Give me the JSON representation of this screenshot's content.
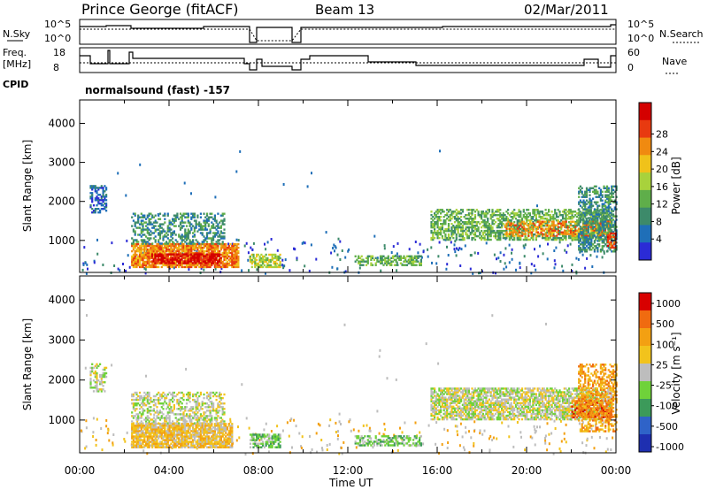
{
  "header": {
    "title": "Prince George (fitACF)",
    "beam": "Beam 13",
    "date": "02/Mar/2011"
  },
  "noise_panel": {
    "left_label": "N.Sky",
    "right_label": "N.Search",
    "ticks_left": [
      "10^5",
      "10^0"
    ],
    "ticks_right": [
      "10^5",
      "10^0"
    ]
  },
  "freq_panel": {
    "left_label_1": "Freq.",
    "left_label_2": "[MHz]",
    "ticks_left": [
      "18",
      "8"
    ],
    "ticks_right": [
      "60",
      "0"
    ],
    "right_label": "Nave",
    "cpid_label": "CPID",
    "cpid_text": "normalsound (fast) -157"
  },
  "colors": {
    "power": [
      "#2b2bd6",
      "#1f6fb8",
      "#3d8a6a",
      "#5fae4a",
      "#a8d23c",
      "#f0c21a",
      "#f08a10",
      "#e83a10",
      "#d40000"
    ],
    "velocity": [
      "#1e2fb0",
      "#2f63c8",
      "#3c9a5a",
      "#6fd23a",
      "#bdbdbd",
      "#f2c31c",
      "#f3a012",
      "#f06b10",
      "#d80000"
    ]
  },
  "chart_data": [
    {
      "type": "heatmap",
      "name": "power",
      "ylabel": "Slant Range [km]",
      "ylim": [
        180,
        4600
      ],
      "yticks": [
        "1000",
        "2000",
        "3000",
        "4000"
      ],
      "xlim": [
        0,
        24
      ],
      "colorbar_label": "Power [dB]",
      "colorbar_ticks": [
        "4",
        "8",
        "12",
        "16",
        "20",
        "24",
        "28"
      ],
      "regions": [
        {
          "t0": 0.45,
          "t1": 1.2,
          "r0": 1700,
          "r1": 2400,
          "level": 1,
          "density": 0.55
        },
        {
          "t0": 2.3,
          "t1": 7.1,
          "r0": 300,
          "r1": 900,
          "level": 6,
          "density": 0.85
        },
        {
          "t0": 2.3,
          "t1": 6.5,
          "r0": 900,
          "r1": 1700,
          "level": 2,
          "density": 0.4
        },
        {
          "t0": 3.2,
          "t1": 6.3,
          "r0": 400,
          "r1": 650,
          "level": 8,
          "density": 0.7
        },
        {
          "t0": 7.6,
          "t1": 9.0,
          "r0": 300,
          "r1": 650,
          "level": 4,
          "density": 0.65
        },
        {
          "t0": 12.3,
          "t1": 15.3,
          "r0": 350,
          "r1": 600,
          "level": 3,
          "density": 0.55
        },
        {
          "t0": 15.7,
          "t1": 23.8,
          "r0": 1000,
          "r1": 1800,
          "level": 3,
          "density": 0.55
        },
        {
          "t0": 19.0,
          "t1": 23.8,
          "r0": 1100,
          "r1": 1500,
          "level": 6,
          "density": 0.5
        },
        {
          "t0": 22.3,
          "t1": 24.0,
          "r0": 700,
          "r1": 2400,
          "level": 2,
          "density": 0.5
        },
        {
          "t0": 23.6,
          "t1": 24.0,
          "r0": 800,
          "r1": 1200,
          "level": 7,
          "density": 0.6
        }
      ]
    },
    {
      "type": "heatmap",
      "name": "velocity",
      "ylabel": "Slant Range [km]",
      "ylim": [
        180,
        4600
      ],
      "yticks": [
        "1000",
        "2000",
        "3000",
        "4000"
      ],
      "xlim": [
        0,
        24
      ],
      "xticks": [
        "00:00",
        "04:00",
        "08:00",
        "12:00",
        "16:00",
        "20:00",
        "00:00"
      ],
      "xlabel": "Time UT",
      "colorbar_label": "Velocity [m s⁻¹]",
      "colorbar_ticks": [
        "1000",
        "500",
        "100",
        "25",
        "-25",
        "-100",
        "-500",
        "-1000"
      ],
      "regions": [
        {
          "t0": 0.45,
          "t1": 1.2,
          "r0": 1700,
          "r1": 2400,
          "level": 4,
          "density": 0.45
        },
        {
          "t0": 2.3,
          "t1": 6.8,
          "r0": 300,
          "r1": 900,
          "level": 5,
          "density": 0.85
        },
        {
          "t0": 2.3,
          "t1": 6.5,
          "r0": 900,
          "r1": 1700,
          "level": 4,
          "density": 0.45
        },
        {
          "t0": 7.6,
          "t1": 9.0,
          "r0": 300,
          "r1": 650,
          "level": 3,
          "density": 0.6
        },
        {
          "t0": 12.3,
          "t1": 15.3,
          "r0": 350,
          "r1": 600,
          "level": 3,
          "density": 0.5
        },
        {
          "t0": 15.7,
          "t1": 23.8,
          "r0": 1000,
          "r1": 1800,
          "level": 4,
          "density": 0.7
        },
        {
          "t0": 22.0,
          "t1": 23.8,
          "r0": 1050,
          "r1": 1500,
          "level": 7,
          "density": 0.6
        },
        {
          "t0": 22.3,
          "t1": 24.0,
          "r0": 700,
          "r1": 2400,
          "level": 6,
          "density": 0.45
        }
      ]
    }
  ]
}
